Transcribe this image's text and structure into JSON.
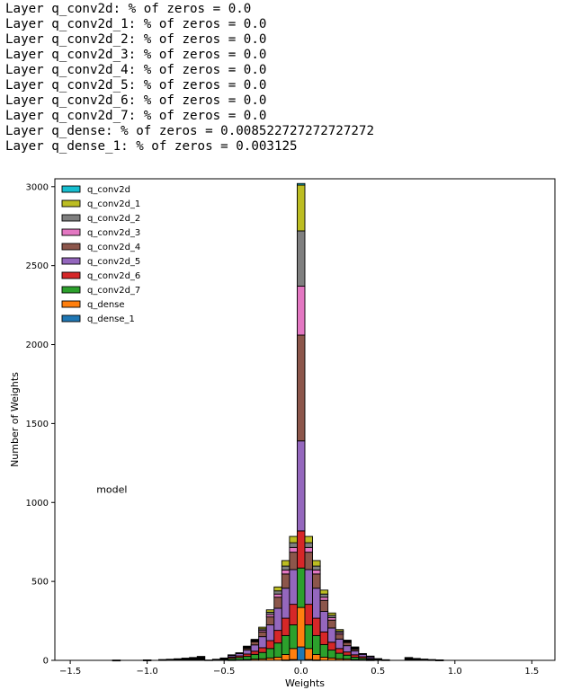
{
  "console_lines": [
    "Layer q_conv2d: % of zeros = 0.0",
    "Layer q_conv2d_1: % of zeros = 0.0",
    "Layer q_conv2d_2: % of zeros = 0.0",
    "Layer q_conv2d_3: % of zeros = 0.0",
    "Layer q_conv2d_4: % of zeros = 0.0",
    "Layer q_conv2d_5: % of zeros = 0.0",
    "Layer q_conv2d_6: % of zeros = 0.0",
    "Layer q_conv2d_7: % of zeros = 0.0",
    "Layer q_dense: % of zeros = 0.008522727272727272",
    "Layer q_dense_1: % of zeros = 0.003125"
  ],
  "chart_data": {
    "type": "bar",
    "subtype": "stacked-histogram",
    "xlabel": "Weights",
    "ylabel": "Number of Weights",
    "annotation": "model",
    "xlim": [
      -1.6,
      1.65
    ],
    "ylim": [
      0,
      3050
    ],
    "xticks": [
      -1.5,
      -1.0,
      -0.5,
      0.0,
      0.5,
      1.0,
      1.5
    ],
    "xtick_labels": [
      "−1.5",
      "−1.0",
      "−0.5",
      "0.0",
      "0.5",
      "1.0",
      "1.5"
    ],
    "yticks": [
      0,
      500,
      1000,
      1500,
      2000,
      2500,
      3000
    ],
    "ytick_labels": [
      "0",
      "500",
      "1000",
      "1500",
      "2000",
      "2500",
      "3000"
    ],
    "grid": false,
    "legend_position": "top-left",
    "bin_centers": [
      -0.6,
      -0.55,
      -0.5,
      -0.45,
      -0.4,
      -0.35,
      -0.3,
      -0.25,
      -0.2,
      -0.15,
      -0.1,
      -0.05,
      0.0,
      0.05,
      0.1,
      0.15,
      0.2,
      0.25,
      0.3,
      0.35,
      0.4,
      0.45,
      0.5,
      0.55,
      0.6,
      0.65
    ],
    "bin_width": 0.05,
    "series": [
      {
        "name": "q_dense_1",
        "color": "#1f77b4",
        "values": [
          0,
          0,
          0,
          0,
          0,
          0,
          0,
          0,
          0,
          0,
          2,
          5,
          85,
          5,
          2,
          0,
          0,
          0,
          0,
          0,
          0,
          0,
          0,
          0,
          0,
          0
        ]
      },
      {
        "name": "q_dense",
        "color": "#ff7f0e",
        "values": [
          0,
          0,
          0,
          2,
          3,
          5,
          8,
          10,
          15,
          20,
          35,
          70,
          250,
          70,
          35,
          20,
          15,
          10,
          8,
          5,
          3,
          2,
          0,
          0,
          0,
          0
        ]
      },
      {
        "name": "q_conv2d_7",
        "color": "#2ca02c",
        "values": [
          2,
          3,
          5,
          10,
          15,
          20,
          30,
          40,
          60,
          90,
          120,
          150,
          250,
          150,
          120,
          80,
          50,
          35,
          25,
          15,
          10,
          5,
          3,
          2,
          0,
          0
        ]
      },
      {
        "name": "q_conv2d_6",
        "color": "#d62728",
        "values": [
          0,
          2,
          5,
          8,
          10,
          15,
          20,
          30,
          50,
          80,
          110,
          130,
          235,
          130,
          110,
          80,
          50,
          30,
          20,
          15,
          10,
          5,
          3,
          0,
          0,
          0
        ]
      },
      {
        "name": "q_conv2d_5",
        "color": "#9467bd",
        "values": [
          0,
          2,
          5,
          10,
          15,
          25,
          40,
          70,
          100,
          140,
          190,
          220,
          570,
          220,
          190,
          130,
          90,
          60,
          40,
          25,
          15,
          10,
          5,
          2,
          0,
          0
        ]
      },
      {
        "name": "q_conv2d_4",
        "color": "#8c564b",
        "values": [
          0,
          0,
          0,
          5,
          5,
          10,
          20,
          30,
          50,
          70,
          90,
          110,
          670,
          110,
          90,
          70,
          50,
          30,
          20,
          10,
          5,
          5,
          0,
          0,
          0,
          0
        ]
      },
      {
        "name": "q_conv2d_3",
        "color": "#e377c2",
        "values": [
          0,
          0,
          0,
          0,
          0,
          5,
          5,
          10,
          15,
          20,
          25,
          30,
          310,
          30,
          25,
          20,
          15,
          10,
          5,
          5,
          0,
          0,
          0,
          0,
          0,
          0
        ]
      },
      {
        "name": "q_conv2d_2",
        "color": "#7f7f7f",
        "values": [
          0,
          0,
          0,
          0,
          0,
          5,
          5,
          10,
          15,
          20,
          25,
          30,
          350,
          30,
          25,
          20,
          15,
          10,
          5,
          5,
          0,
          0,
          0,
          0,
          0,
          0
        ]
      },
      {
        "name": "q_conv2d_1",
        "color": "#bcbd22",
        "values": [
          0,
          0,
          0,
          0,
          0,
          5,
          5,
          10,
          15,
          25,
          35,
          40,
          290,
          40,
          35,
          25,
          15,
          10,
          5,
          5,
          0,
          0,
          0,
          0,
          0,
          0
        ]
      },
      {
        "name": "q_conv2d",
        "color": "#17becf",
        "values": [
          0,
          0,
          0,
          0,
          0,
          0,
          0,
          0,
          0,
          0,
          0,
          0,
          10,
          0,
          0,
          0,
          0,
          0,
          0,
          0,
          0,
          0,
          0,
          0,
          0,
          0
        ]
      }
    ],
    "outer_black_bins": [
      {
        "x": -1.2,
        "value": 2
      },
      {
        "x": -1.0,
        "value": 3
      },
      {
        "x": -0.9,
        "value": 5
      },
      {
        "x": -0.85,
        "value": 7
      },
      {
        "x": -0.8,
        "value": 10
      },
      {
        "x": -0.75,
        "value": 14
      },
      {
        "x": -0.7,
        "value": 18
      },
      {
        "x": -0.65,
        "value": 25
      },
      {
        "x": 0.7,
        "value": 18
      },
      {
        "x": 0.75,
        "value": 12
      },
      {
        "x": 0.8,
        "value": 8
      },
      {
        "x": 0.85,
        "value": 5
      },
      {
        "x": 0.9,
        "value": 3
      }
    ],
    "legend_order": [
      "q_conv2d",
      "q_conv2d_1",
      "q_conv2d_2",
      "q_conv2d_3",
      "q_conv2d_4",
      "q_conv2d_5",
      "q_conv2d_6",
      "q_conv2d_7",
      "q_dense",
      "q_dense_1"
    ]
  }
}
